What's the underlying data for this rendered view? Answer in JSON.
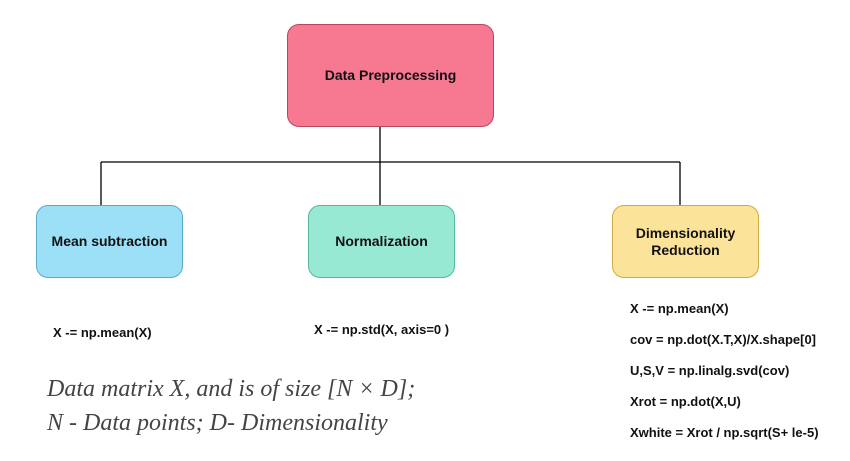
{
  "diagram": {
    "root": {
      "label": "Data Preprocessing",
      "color": "#f67891"
    },
    "branches": [
      {
        "label": "Mean subtraction",
        "color": "#9be0f6",
        "code": [
          "X -= np.mean(X)"
        ]
      },
      {
        "label": "Normalization",
        "color": "#98e9d4",
        "code": [
          "X -= np.std(X, axis=0 )"
        ]
      },
      {
        "label": "Dimensionality Reduction",
        "color": "#fce39a",
        "code": [
          "X -= np.mean(X)",
          "cov = np.dot(X.T,X)/X.shape[0]",
          "U,S,V = np.linalg.svd(cov)",
          "Xrot = np.dot(X,U)",
          "Xwhite = Xrot / np.sqrt(S+ le-5)"
        ]
      }
    ]
  },
  "caption": {
    "line1": "Data matrix X, and is of size [N × D];",
    "line2": "N - Data points; D- Dimensionality"
  }
}
